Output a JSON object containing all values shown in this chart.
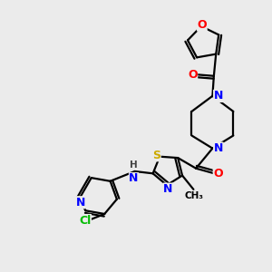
{
  "bg_color": "#ebebeb",
  "atom_colors": {
    "N": "#0000ff",
    "O": "#ff0000",
    "S": "#ccaa00",
    "Cl": "#00bb00",
    "C": "#000000",
    "H": "#444444"
  },
  "font_size": 9,
  "font_size_small": 7.5,
  "lw": 1.6
}
